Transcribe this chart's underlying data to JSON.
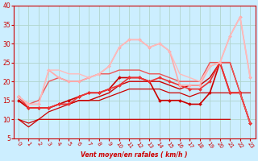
{
  "xlabel": "Vent moyen/en rafales ( km/h )",
  "background_color": "#cceeff",
  "grid_color": "#b0d4cc",
  "xlim": [
    -0.5,
    23.5
  ],
  "ylim": [
    5,
    40
  ],
  "yticks": [
    5,
    10,
    15,
    20,
    25,
    30,
    35,
    40
  ],
  "xticks": [
    0,
    1,
    2,
    3,
    4,
    5,
    6,
    7,
    8,
    9,
    10,
    11,
    12,
    13,
    14,
    15,
    16,
    17,
    18,
    19,
    20,
    21,
    22,
    23
  ],
  "series": [
    {
      "x": [
        0,
        1,
        2,
        3,
        4,
        5,
        6,
        7,
        8,
        9,
        10,
        11,
        12,
        13,
        14,
        15,
        16,
        17,
        18,
        19,
        20,
        21
      ],
      "y": [
        10,
        8,
        10,
        10,
        10,
        10,
        10,
        10,
        10,
        10,
        10,
        10,
        10,
        10,
        10,
        10,
        10,
        10,
        10,
        10,
        10,
        10
      ],
      "color": "#cc0000",
      "marker": null,
      "lw": 0.9,
      "alpha": 1.0
    },
    {
      "x": [
        0,
        1,
        2,
        3,
        4,
        5,
        6,
        7,
        8,
        9,
        10,
        11,
        12,
        13,
        14,
        15,
        16,
        17,
        18,
        19,
        20,
        21,
        22,
        23
      ],
      "y": [
        10,
        9,
        10,
        12,
        13,
        14,
        15,
        15,
        15,
        16,
        17,
        18,
        18,
        18,
        18,
        17,
        17,
        16,
        17,
        17,
        17,
        17,
        17,
        17
      ],
      "color": "#cc0000",
      "marker": null,
      "lw": 0.9,
      "alpha": 1.0
    },
    {
      "x": [
        0,
        1,
        2,
        3,
        4,
        5,
        6,
        7,
        8,
        9,
        10,
        11,
        12,
        13,
        14,
        15,
        16,
        17,
        18,
        19,
        20,
        21,
        22,
        23
      ],
      "y": [
        15,
        13,
        13,
        13,
        14,
        14,
        15,
        15,
        16,
        17,
        19,
        20,
        20,
        20,
        20,
        19,
        18,
        19,
        19,
        21,
        25,
        25,
        17,
        9
      ],
      "color": "#cc0000",
      "marker": null,
      "lw": 1.0,
      "alpha": 1.0
    },
    {
      "x": [
        0,
        1,
        2,
        3,
        4,
        5,
        6,
        7,
        8,
        9,
        10,
        11,
        12,
        13,
        14,
        15,
        16,
        17,
        18,
        19,
        20,
        21,
        22,
        23
      ],
      "y": [
        15,
        13,
        13,
        13,
        14,
        15,
        16,
        17,
        17,
        18,
        21,
        21,
        21,
        20,
        15,
        15,
        15,
        14,
        14,
        17,
        25,
        17,
        17,
        9
      ],
      "color": "#cc0000",
      "marker": "D",
      "lw": 1.2,
      "alpha": 1.0
    },
    {
      "x": [
        0,
        1,
        2,
        3,
        4,
        5,
        6,
        7,
        8,
        9,
        10,
        11,
        12,
        13,
        14,
        15,
        16,
        17,
        18,
        19,
        20,
        21,
        22,
        23
      ],
      "y": [
        16,
        13,
        13,
        13,
        14,
        14,
        16,
        17,
        17,
        18,
        19,
        21,
        21,
        20,
        21,
        20,
        19,
        18,
        18,
        20,
        25,
        17,
        17,
        9
      ],
      "color": "#ee3333",
      "marker": "D",
      "lw": 1.2,
      "alpha": 1.0
    },
    {
      "x": [
        0,
        1,
        2,
        3,
        4,
        5,
        6,
        7,
        8,
        9,
        10,
        11,
        12,
        13,
        14,
        15,
        16,
        17,
        18,
        19,
        20,
        21,
        22,
        23
      ],
      "y": [
        16,
        14,
        15,
        20,
        21,
        20,
        20,
        21,
        22,
        22,
        23,
        23,
        23,
        22,
        22,
        21,
        20,
        20,
        20,
        25,
        25,
        25,
        17,
        9
      ],
      "color": "#ee5555",
      "marker": null,
      "lw": 1.0,
      "alpha": 1.0
    },
    {
      "x": [
        0,
        1,
        2,
        3,
        4,
        5,
        6,
        7,
        8,
        9,
        10,
        11,
        12,
        13,
        14,
        15,
        16,
        17,
        18,
        19,
        20,
        21,
        22,
        23
      ],
      "y": [
        16,
        14,
        14,
        23,
        21,
        20,
        20,
        21,
        22,
        24,
        29,
        31,
        31,
        29,
        30,
        28,
        19,
        19,
        19,
        24,
        25,
        32,
        37,
        21
      ],
      "color": "#ffaaaa",
      "marker": "D",
      "lw": 1.2,
      "alpha": 1.0
    },
    {
      "x": [
        0,
        1,
        2,
        3,
        4,
        5,
        6,
        7,
        8,
        9,
        10,
        11,
        12,
        13,
        14,
        15,
        16,
        17,
        18,
        19,
        20,
        21,
        22,
        23
      ],
      "y": [
        16,
        14,
        14,
        23,
        23,
        22,
        22,
        21,
        22,
        24,
        29,
        31,
        31,
        29,
        30,
        28,
        22,
        21,
        20,
        24,
        25,
        32,
        37,
        21
      ],
      "color": "#ffbbbb",
      "marker": null,
      "lw": 1.0,
      "alpha": 1.0
    }
  ]
}
